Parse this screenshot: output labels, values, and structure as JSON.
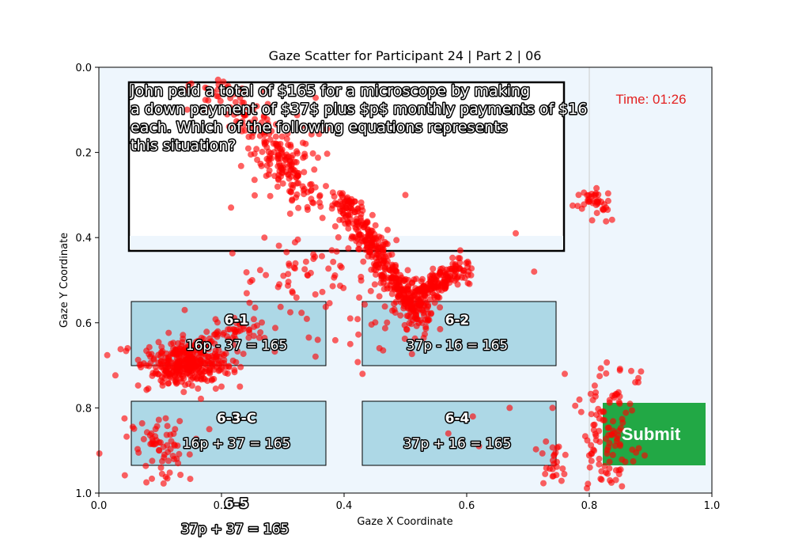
{
  "chart_data": {
    "type": "scatter",
    "title": "Gaze Scatter for Participant 24 | Part 2 | 06",
    "xlabel": "Gaze X Coordinate",
    "ylabel": "Gaze Y Coordinate",
    "xlim": [
      0.0,
      1.0
    ],
    "ylim": [
      1.0,
      0.0
    ],
    "y_inverted": true,
    "x_ticks": [
      "0.0",
      "0.2",
      "0.4",
      "0.6",
      "0.8",
      "1.0"
    ],
    "y_ticks": [
      "0.0",
      "0.2",
      "0.4",
      "0.6",
      "0.8",
      "1.0"
    ],
    "grid": false,
    "point_color": "#ff0000",
    "reference_line_x": 0.8,
    "clusters": [
      {
        "cx": 0.14,
        "cy": 0.7,
        "sx": 0.035,
        "sy": 0.025,
        "n": 320
      },
      {
        "cx": 0.1,
        "cy": 0.89,
        "sx": 0.03,
        "sy": 0.04,
        "n": 70
      },
      {
        "cx": 0.31,
        "cy": 0.22,
        "sx": 0.03,
        "sy": 0.05,
        "n": 90
      },
      {
        "cx": 0.81,
        "cy": 0.32,
        "sx": 0.012,
        "sy": 0.02,
        "n": 40
      },
      {
        "cx": 0.83,
        "cy": 0.86,
        "sx": 0.02,
        "sy": 0.07,
        "n": 110
      },
      {
        "cx": 0.74,
        "cy": 0.92,
        "sx": 0.015,
        "sy": 0.03,
        "n": 25
      },
      {
        "cx": 0.2,
        "cy": 0.06,
        "sx": 0.03,
        "sy": 0.03,
        "n": 25
      },
      {
        "cx": 0.33,
        "cy": 0.5,
        "sx": 0.06,
        "sy": 0.06,
        "n": 70
      },
      {
        "cx": 0.47,
        "cy": 0.62,
        "sx": 0.04,
        "sy": 0.03,
        "n": 20
      }
    ],
    "trails": [
      {
        "x0": 0.39,
        "y0": 0.3,
        "x1": 0.53,
        "y1": 0.6,
        "n": 380,
        "spread": 0.012
      },
      {
        "x0": 0.5,
        "y0": 0.55,
        "x1": 0.6,
        "y1": 0.47,
        "n": 200,
        "spread": 0.015
      },
      {
        "x0": 0.22,
        "y0": 0.07,
        "x1": 0.36,
        "y1": 0.35,
        "n": 120,
        "spread": 0.015
      },
      {
        "x0": 0.14,
        "y0": 0.68,
        "x1": 0.24,
        "y1": 0.6,
        "n": 90,
        "spread": 0.015
      }
    ],
    "scattered_points": [
      [
        0.5,
        0.3
      ],
      [
        0.27,
        0.4
      ],
      [
        0.68,
        0.39
      ],
      [
        0.71,
        0.48
      ],
      [
        0.88,
        0.74
      ],
      [
        0.88,
        0.73
      ],
      [
        0.76,
        0.72
      ],
      [
        0.41,
        0.65
      ],
      [
        0.25,
        0.5
      ],
      [
        0.74,
        0.8
      ],
      [
        0.61,
        0.82
      ],
      [
        0.67,
        0.8
      ],
      [
        0.57,
        0.86
      ],
      [
        0.62,
        0.89
      ],
      [
        0.2,
        0.75
      ],
      [
        0.23,
        0.75
      ],
      [
        0.14,
        0.57
      ],
      [
        0.35,
        0.45
      ],
      [
        0.43,
        0.72
      ],
      [
        0.41,
        0.59
      ],
      [
        0.45,
        0.51
      ],
      [
        0.38,
        0.43
      ]
    ]
  },
  "stimulus": {
    "question_text": [
      "John paid a total of $165 for a microscope by making",
      "a down payment of $37$ plus $p$ monthly payments of $16",
      "each. Which of the following equations represents",
      "this situation?"
    ],
    "timer": "Time: 01:26",
    "submit_label": "Submit",
    "options": [
      {
        "id": "6-1",
        "equation": "16p - 37 = 165"
      },
      {
        "id": "6-2",
        "equation": "37p - 16 = 165"
      },
      {
        "id": "6-3-C",
        "equation": "16p + 37 = 165"
      },
      {
        "id": "6-4",
        "equation": "37p + 16 = 165"
      },
      {
        "id": "6-5",
        "equation": "37p + 37 = 165"
      }
    ],
    "colors": {
      "plot_background": "#eef6fd",
      "option_fill": "#add8e6",
      "submit_fill": "#22a845",
      "timer": "#e32020"
    }
  }
}
